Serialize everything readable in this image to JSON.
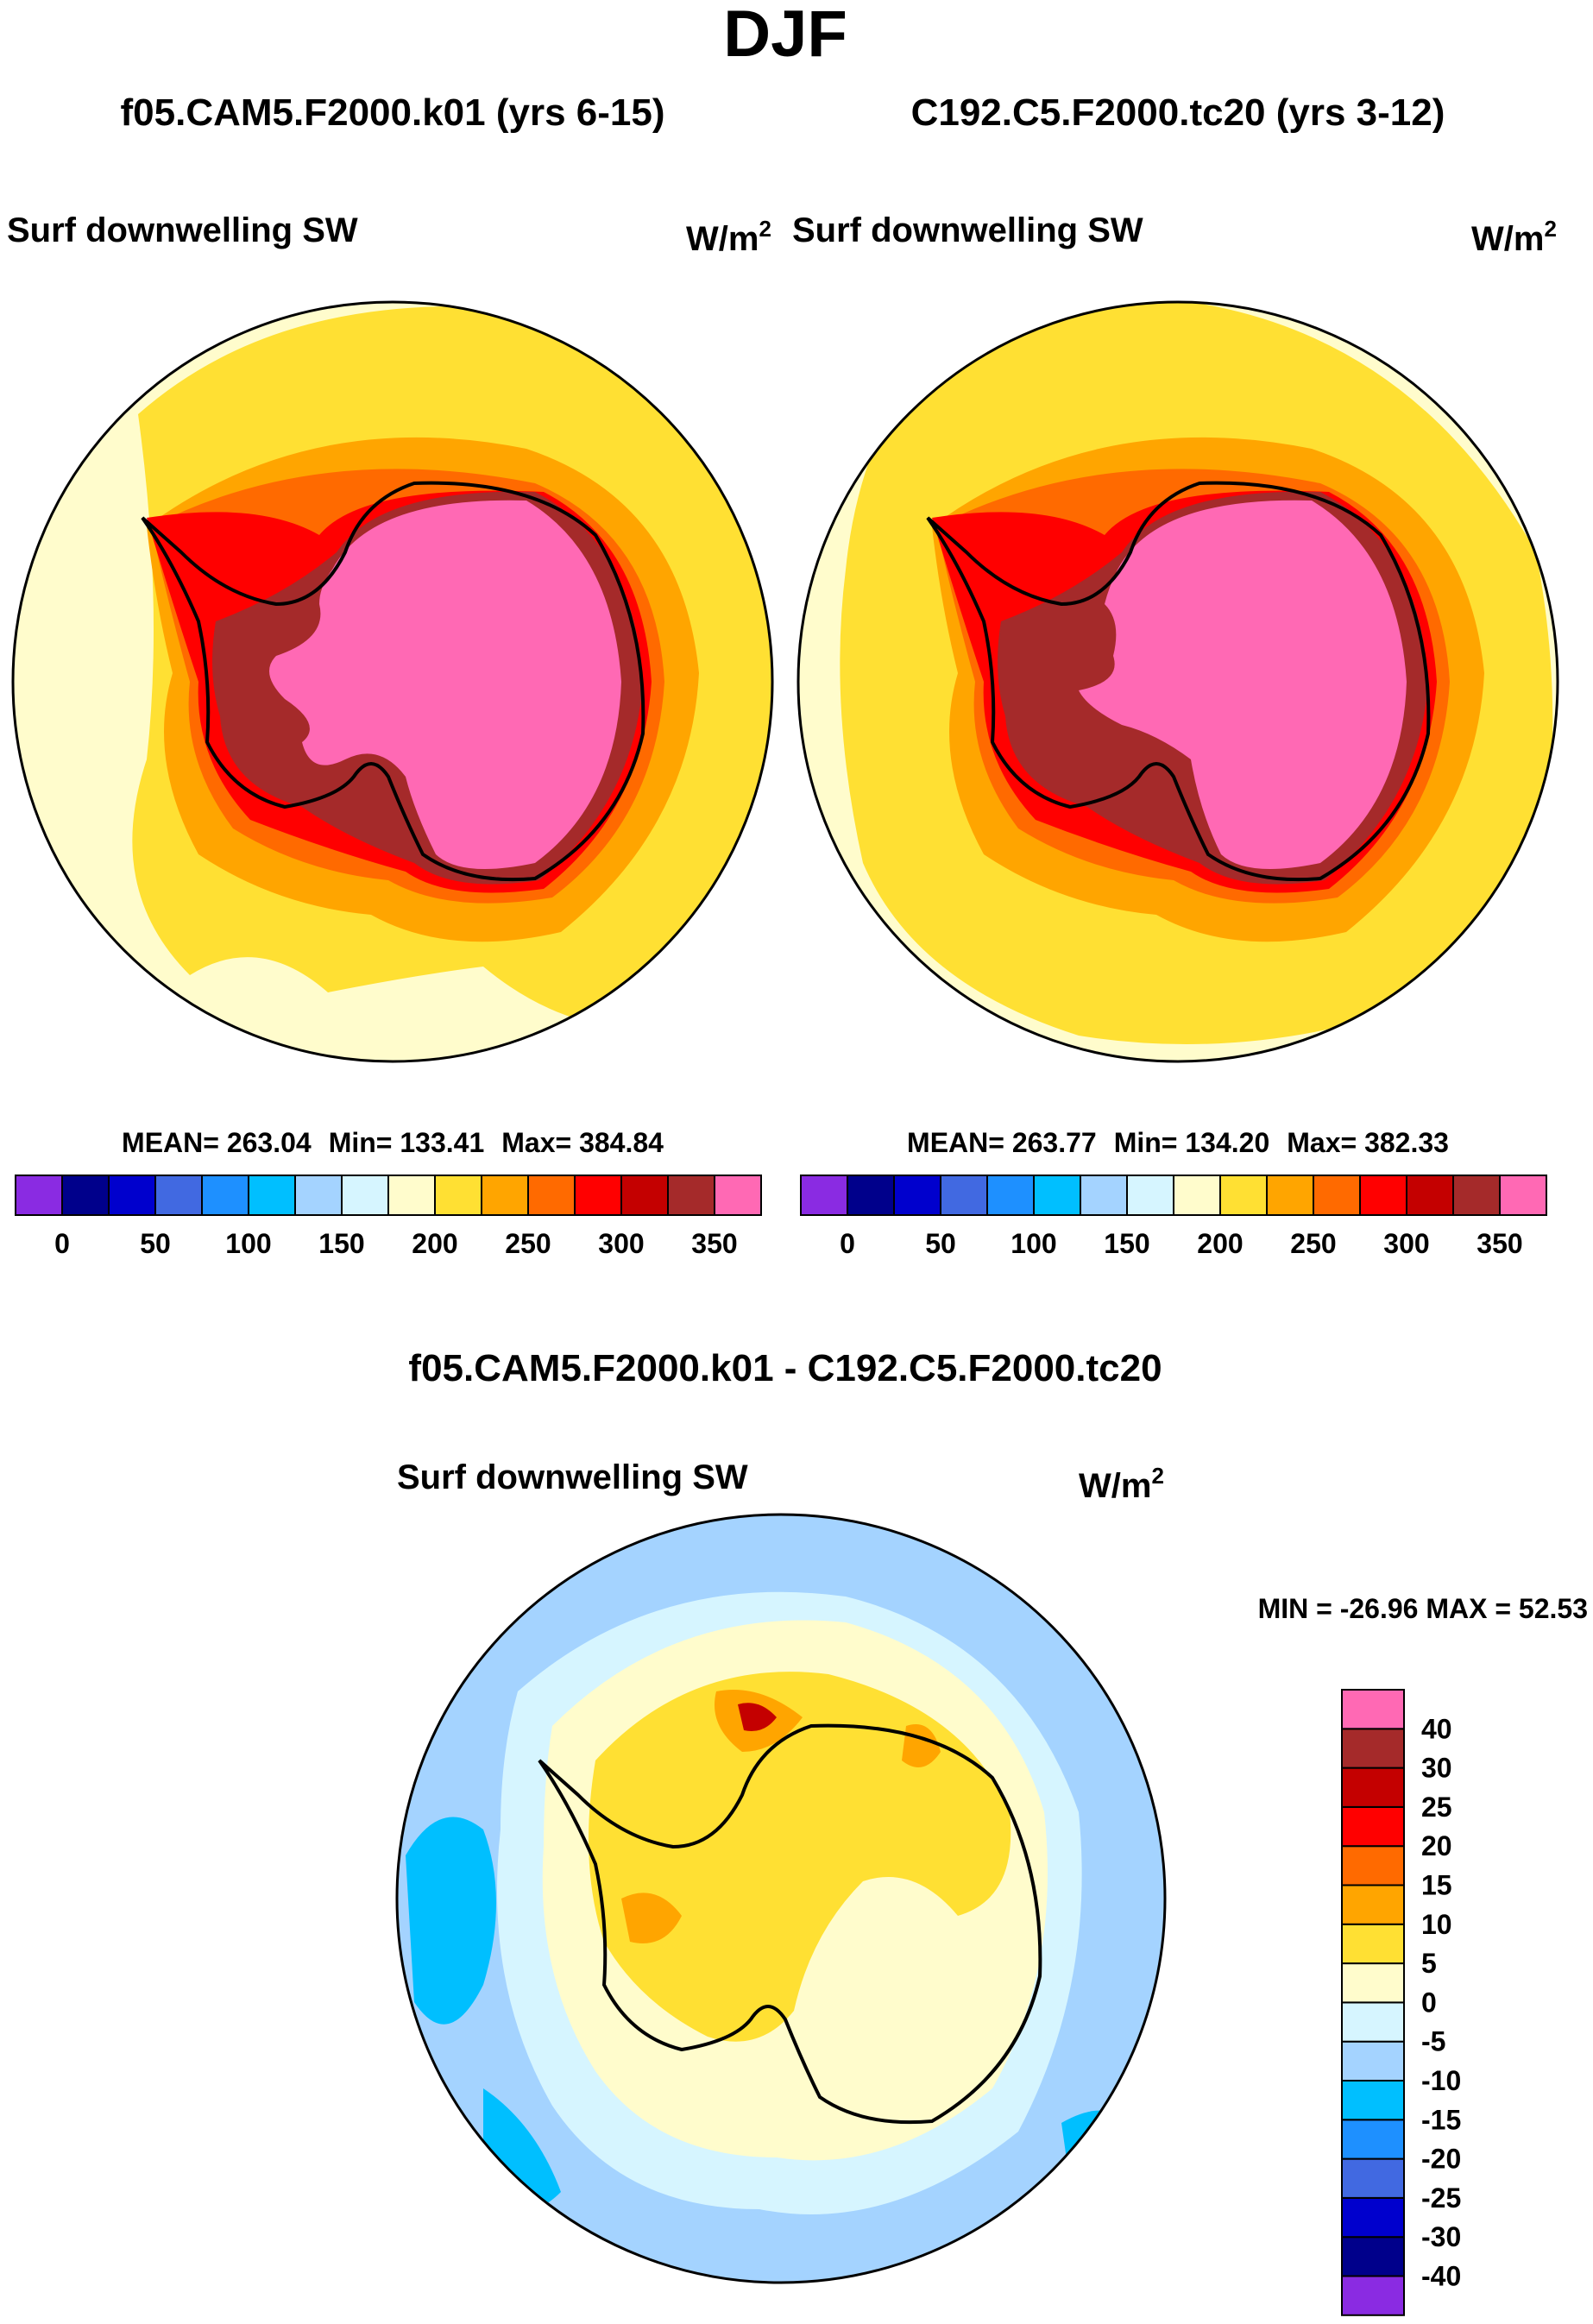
{
  "figure": {
    "season": "DJF",
    "left_panel": {
      "title": "f05.CAM5.F2000.k01 (yrs 6-15)",
      "variable": "Surf downwelling SW",
      "units_base": "W/m",
      "units_exp": "2",
      "stats": {
        "mean": "263.04",
        "min": "133.41",
        "max": "384.84"
      }
    },
    "right_panel": {
      "title": "C192.C5.F2000.tc20 (yrs 3-12)",
      "variable": "Surf downwelling SW",
      "units_base": "W/m",
      "units_exp": "2",
      "stats": {
        "mean": "263.77",
        "min": "134.20",
        "max": "382.33"
      }
    },
    "diff_panel": {
      "title": "f05.CAM5.F2000.k01 - C192.C5.F2000.tc20",
      "variable": "Surf downwelling SW",
      "units_base": "W/m",
      "units_exp": "2",
      "minmax_text": "MIN = -26.96 MAX =  52.53"
    }
  },
  "labels": {
    "mean_prefix": "MEAN= ",
    "min_prefix": "Min= ",
    "max_prefix": "Max= "
  },
  "colorbars": {
    "abs_colors": [
      "#8a2be2",
      "#00008b",
      "#0000cd",
      "#4169e1",
      "#1e90ff",
      "#00bfff",
      "#a4d3ff",
      "#d6f5ff",
      "#fffccc",
      "#ffe033",
      "#ffa500",
      "#ff6a00",
      "#ff0000",
      "#c40000",
      "#a52a2a",
      "#ff69b4"
    ],
    "abs_labels": [
      "0",
      "50",
      "100",
      "150",
      "200",
      "250",
      "300",
      "350"
    ],
    "diff_colors": [
      "#8a2be2",
      "#00008b",
      "#0000cd",
      "#4169e1",
      "#1e90ff",
      "#00bfff",
      "#a4d3ff",
      "#d6f5ff",
      "#fffccc",
      "#ffe033",
      "#ffa500",
      "#ff6a00",
      "#ff0000",
      "#c40000",
      "#a52a2a",
      "#ff69b4"
    ],
    "diff_labels": [
      "-40",
      "-30",
      "-25",
      "-20",
      "-15",
      "-10",
      "-5",
      "0",
      "5",
      "10",
      "15",
      "20",
      "25",
      "30",
      "40"
    ]
  },
  "map_colors": {
    "ocean_pale": "#fffccc",
    "ocean_yellow": "#ffe033",
    "orange": "#ffa500",
    "dark_orange": "#ff6a00",
    "red": "#ff0000",
    "dark_red": "#a52a2a",
    "pink": "#ff69b4",
    "diff_light_blue": "#d6f5ff",
    "diff_blue": "#a4d3ff",
    "diff_cyan": "#00bfff",
    "diff_pale": "#fffccc",
    "diff_yellow": "#ffe033",
    "diff_orange": "#ffa500",
    "diff_darkred": "#c40000"
  }
}
